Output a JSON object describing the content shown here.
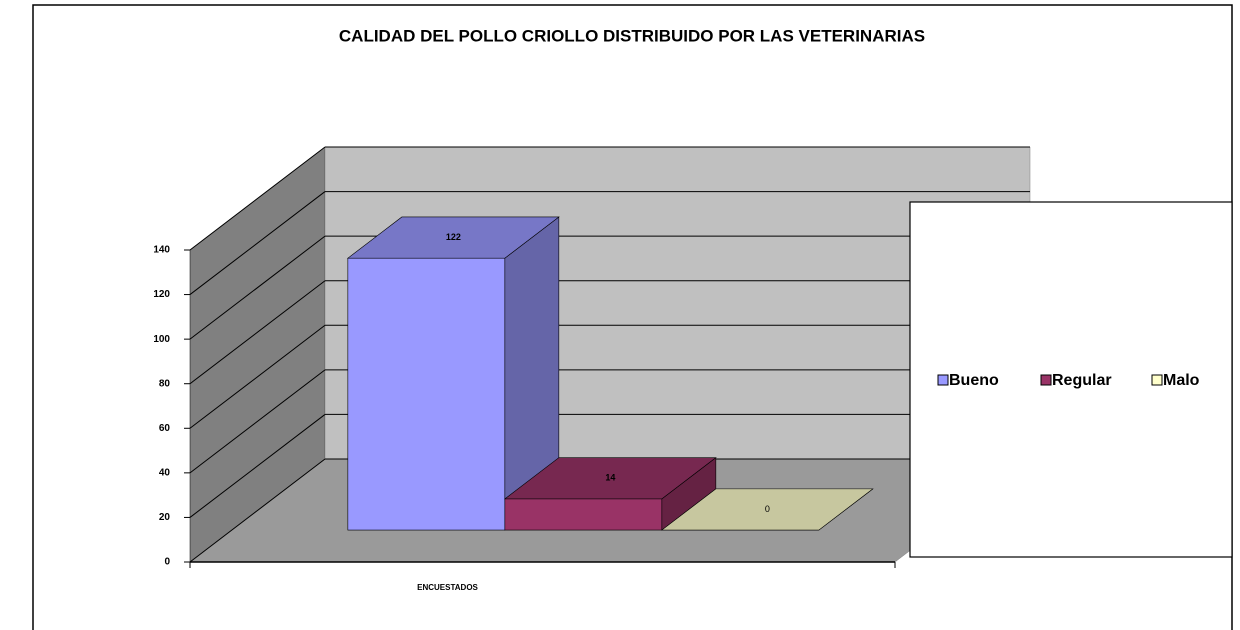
{
  "chart_data": {
    "type": "bar3d",
    "title": "CALIDAD DEL POLLO CRIOLLO DISTRIBUIDO POR LAS VETERINARIAS",
    "categories": [
      "ENCUESTADOS"
    ],
    "series": [
      {
        "name": "Bueno",
        "color": "#9999ff",
        "values": [
          122
        ]
      },
      {
        "name": "Regular",
        "color": "#993366",
        "values": [
          14
        ]
      },
      {
        "name": "Malo",
        "color": "#ffffcc",
        "values": [
          0
        ]
      }
    ],
    "ylim": [
      0,
      140
    ],
    "yticks": [
      0,
      20,
      40,
      60,
      80,
      100,
      120,
      140
    ],
    "grid": true,
    "legend": "right"
  }
}
